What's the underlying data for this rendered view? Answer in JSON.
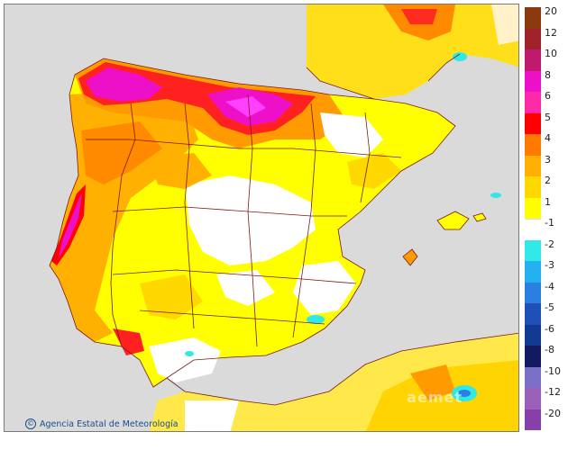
{
  "attribution": "Agencia Estatal de Meteorología",
  "legend": {
    "levels": [
      {
        "label": "20",
        "color": "#8b3a10"
      },
      {
        "label": "12",
        "color": "#a0222a"
      },
      {
        "label": "10",
        "color": "#c01a6e"
      },
      {
        "label": "8",
        "color": "#ee10c8"
      },
      {
        "label": "6",
        "color": "#ff2aa8"
      },
      {
        "label": "5",
        "color": "#ff0000"
      },
      {
        "label": "4",
        "color": "#ff7a00"
      },
      {
        "label": "3",
        "color": "#ffb000"
      },
      {
        "label": "2",
        "color": "#ffd800"
      },
      {
        "label": "1",
        "color": "#ffff00"
      },
      {
        "label": "-1",
        "color": "#ffffff"
      },
      {
        "label": "-2",
        "color": "#30e8e8"
      },
      {
        "label": "-3",
        "color": "#22b0ee"
      },
      {
        "label": "-4",
        "color": "#2a80e0"
      },
      {
        "label": "-5",
        "color": "#1e50b8"
      },
      {
        "label": "-6",
        "color": "#123a90"
      },
      {
        "label": "-8",
        "color": "#141a60"
      },
      {
        "label": "-10",
        "color": "#7a70c8"
      },
      {
        "label": "-12",
        "color": "#9a60b8"
      },
      {
        "label": "-20",
        "color": "#8840a8"
      }
    ]
  },
  "colors": {
    "sea": "#dadada",
    "border": "#7a1a1a"
  }
}
